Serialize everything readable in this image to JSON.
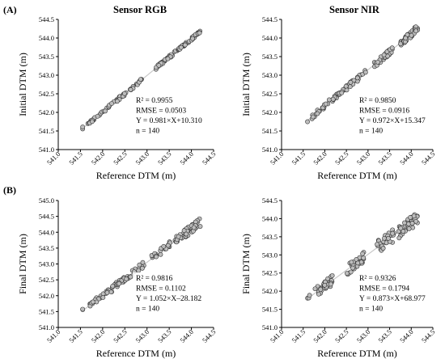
{
  "figure": {
    "row_labels": [
      "(A)",
      "(B)"
    ],
    "column_titles": [
      "Sensor RGB",
      "Sensor NIR"
    ]
  },
  "chart_data": [
    {
      "id": "A-RGB",
      "type": "scatter",
      "xlabel": "Reference DTM (m)",
      "ylabel": "Initial DTM (m)",
      "xlim": [
        541.0,
        544.5
      ],
      "ylim": [
        541.0,
        544.5
      ],
      "xticks": [
        "541.0",
        "541.5",
        "542.0",
        "542.5",
        "543.0",
        "543.5",
        "544.0",
        "544.5"
      ],
      "yticks": [
        "541.0",
        "541.5",
        "542.0",
        "542.5",
        "543.0",
        "543.5",
        "544.0",
        "544.5"
      ],
      "fit": {
        "slope": 0.981,
        "intercept": 10.31
      },
      "stats": [
        "R² = 0.9955",
        "RMSE = 0.0503",
        "Y = 0.981×X+10.310",
        "n = 140"
      ],
      "n": 140,
      "clusters": [
        {
          "x": [
            541.55,
            541.55
          ],
          "spread": 0.04,
          "count": 2
        },
        {
          "x": [
            541.65,
            542.0
          ],
          "spread": 0.03,
          "count": 18
        },
        {
          "x": [
            542.0,
            542.9
          ],
          "spread": 0.04,
          "count": 46
        },
        {
          "x": [
            543.2,
            543.7
          ],
          "spread": 0.04,
          "count": 30
        },
        {
          "x": [
            543.7,
            544.2
          ],
          "spread": 0.035,
          "count": 44
        }
      ]
    },
    {
      "id": "A-NIR",
      "type": "scatter",
      "xlabel": "Reference DTM (m)",
      "ylabel": "Initial DTM (m)",
      "xlim": [
        541.0,
        544.5
      ],
      "ylim": [
        541.0,
        544.5
      ],
      "xticks": [
        "541.0",
        "541.5",
        "542.0",
        "542.5",
        "543.0",
        "543.5",
        "544.0",
        "544.5"
      ],
      "yticks": [
        "541.0",
        "541.5",
        "542.0",
        "542.5",
        "543.0",
        "543.5",
        "544.0",
        "544.5"
      ],
      "fit": {
        "slope": 0.972,
        "intercept": 15.347
      },
      "stats": [
        "R² = 0.9850",
        "RMSE = 0.0916",
        "Y = 0.972×X+15.347",
        "n = 140"
      ],
      "n": 140,
      "clusters": [
        {
          "x": [
            541.6,
            541.6
          ],
          "spread": 0.04,
          "count": 1
        },
        {
          "x": [
            541.7,
            542.1
          ],
          "spread": 0.06,
          "count": 20
        },
        {
          "x": [
            542.1,
            542.95
          ],
          "spread": 0.07,
          "count": 45
        },
        {
          "x": [
            543.1,
            543.6
          ],
          "spread": 0.08,
          "count": 30
        },
        {
          "x": [
            543.75,
            544.15
          ],
          "spread": 0.09,
          "count": 44
        }
      ]
    },
    {
      "id": "B-RGB",
      "type": "scatter",
      "xlabel": "Reference DTM (m)",
      "ylabel": "Final DTM (m)",
      "xlim": [
        541.0,
        544.5
      ],
      "ylim": [
        541.0,
        545.0
      ],
      "xticks": [
        "541.0",
        "541.5",
        "542.0",
        "542.5",
        "543.0",
        "543.5",
        "544.0",
        "544.5"
      ],
      "yticks": [
        "541.0",
        "541.5",
        "542.0",
        "542.5",
        "543.0",
        "543.5",
        "544.0",
        "544.5",
        "545.0"
      ],
      "fit": {
        "slope": 1.052,
        "intercept": -28.182
      },
      "stats": [
        "R² = 0.9816",
        "RMSE = 0.1102",
        "Y = 1.052×X–28.182",
        "n = 140"
      ],
      "n": 140,
      "clusters": [
        {
          "x": [
            541.55,
            541.6
          ],
          "spread": 0.05,
          "count": 2
        },
        {
          "x": [
            541.7,
            542.1
          ],
          "spread": 0.08,
          "count": 20
        },
        {
          "x": [
            542.1,
            542.95
          ],
          "spread": 0.1,
          "count": 44
        },
        {
          "x": [
            543.1,
            543.7
          ],
          "spread": 0.12,
          "count": 30
        },
        {
          "x": [
            543.7,
            544.2
          ],
          "spread": 0.14,
          "count": 44
        }
      ]
    },
    {
      "id": "B-NIR",
      "type": "scatter",
      "xlabel": "Reference DTM (m)",
      "ylabel": "Final DTM (m)",
      "xlim": [
        541.0,
        544.5
      ],
      "ylim": [
        541.0,
        544.5
      ],
      "xticks": [
        "541.0",
        "541.5",
        "542.0",
        "542.5",
        "543.0",
        "543.5",
        "544.0",
        "544.5"
      ],
      "yticks": [
        "541.0",
        "541.5",
        "542.0",
        "542.5",
        "543.0",
        "543.5",
        "544.0",
        "544.5"
      ],
      "fit": {
        "slope": 0.873,
        "intercept": 68.977
      },
      "stats": [
        "R² = 0.9326",
        "RMSE = 0.1794",
        "Y = 0.873×X+68.977",
        "n = 140"
      ],
      "n": 140,
      "clusters": [
        {
          "x": [
            541.6,
            541.7
          ],
          "spread": 0.06,
          "count": 3
        },
        {
          "x": [
            541.75,
            542.2
          ],
          "spread": 0.16,
          "count": 35
        },
        {
          "x": [
            542.5,
            542.9
          ],
          "spread": 0.16,
          "count": 30
        },
        {
          "x": [
            543.2,
            543.6
          ],
          "spread": 0.18,
          "count": 28
        },
        {
          "x": [
            543.7,
            544.15
          ],
          "spread": 0.18,
          "count": 44
        }
      ]
    }
  ],
  "colors": {
    "marker_fill": "#bdbdbd",
    "marker_stroke": "#333333",
    "fit_line": "#c8c8c8",
    "axis": "#000000"
  }
}
